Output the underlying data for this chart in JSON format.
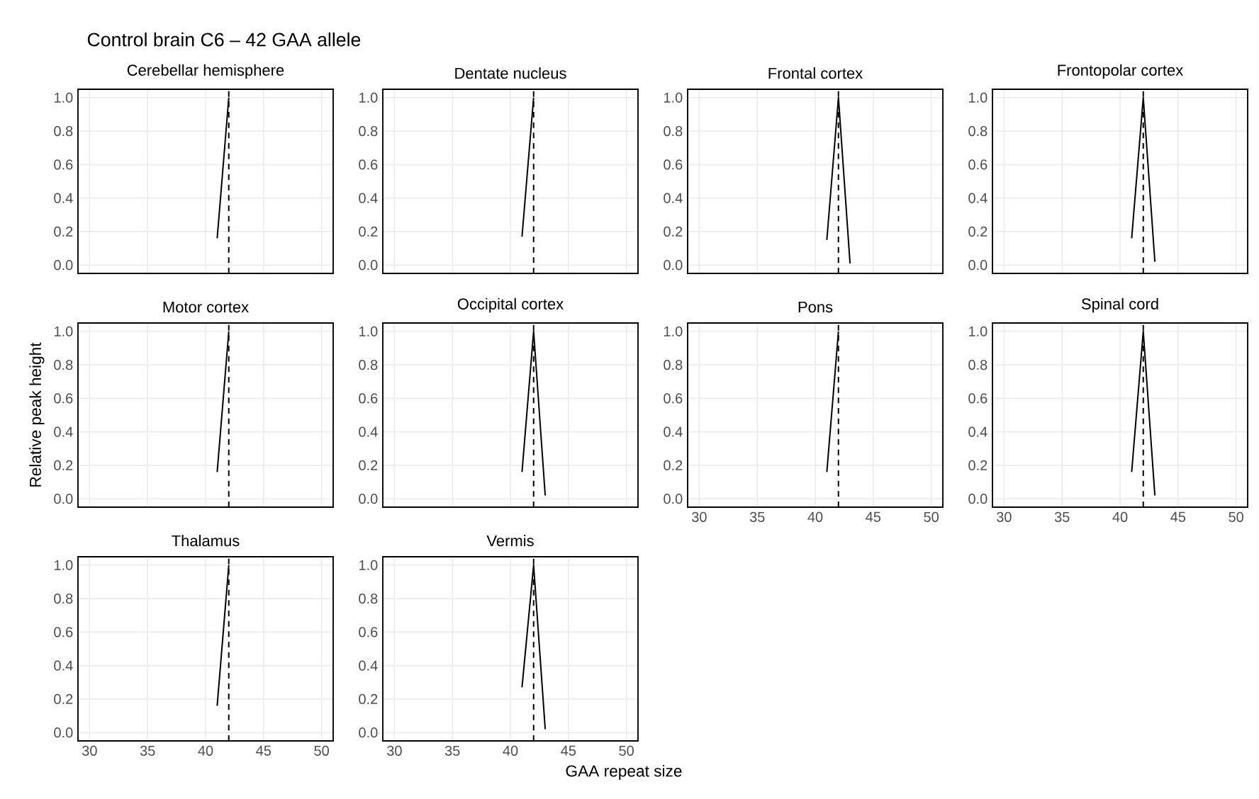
{
  "chart_data": [
    {
      "type": "line",
      "title": "Cerebellar hemisphere",
      "annotations": [
        "Control brain C6 – 42 GAA allele"
      ],
      "x": [
        41,
        42
      ],
      "series": [
        {
          "color": "#000000",
          "values": [
            0.16,
            1.0
          ]
        }
      ],
      "ref_lines": [
        {
          "axis": "x",
          "value": 42,
          "color": "#000000",
          "line_style": "dashed"
        }
      ],
      "xlim": [
        29,
        51
      ],
      "ylim": [
        -0.05,
        1.05
      ],
      "xticks": [
        30,
        35,
        40,
        45,
        50
      ],
      "yticks": [
        {
          "value": 0,
          "label": "0.0"
        },
        {
          "value": 0.2,
          "label": "0.2"
        },
        {
          "value": 0.4,
          "label": "0.4"
        },
        {
          "value": 0.6,
          "label": "0.6"
        },
        {
          "value": 0.8,
          "label": "0.8"
        },
        {
          "value": 1,
          "label": "1.0"
        }
      ],
      "grid": true,
      "tick_labels": "y"
    },
    {
      "type": "line",
      "title": "Dentate nucleus",
      "x": [
        41,
        42
      ],
      "series": [
        {
          "color": "#000000",
          "values": [
            0.17,
            1.0
          ]
        }
      ],
      "ref_lines": [
        {
          "axis": "x",
          "value": 42,
          "color": "#000000",
          "line_style": "dashed"
        }
      ],
      "xlim": [
        29,
        51
      ],
      "ylim": [
        -0.05,
        1.05
      ],
      "xticks": [
        30,
        35,
        40,
        45,
        50
      ],
      "yticks": [
        {
          "value": 0,
          "label": "0.0"
        },
        {
          "value": 0.2,
          "label": "0.2"
        },
        {
          "value": 0.4,
          "label": "0.4"
        },
        {
          "value": 0.6,
          "label": "0.6"
        },
        {
          "value": 0.8,
          "label": "0.8"
        },
        {
          "value": 1,
          "label": "1.0"
        }
      ],
      "grid": true,
      "tick_labels": "y"
    },
    {
      "type": "line",
      "title": "Frontal cortex",
      "x": [
        41,
        42,
        43
      ],
      "series": [
        {
          "color": "#000000",
          "values": [
            0.15,
            1.0,
            0.01
          ]
        }
      ],
      "ref_lines": [
        {
          "axis": "x",
          "value": 42,
          "color": "#000000",
          "line_style": "dashed"
        }
      ],
      "xlim": [
        29,
        51
      ],
      "ylim": [
        -0.05,
        1.05
      ],
      "xticks": [
        30,
        35,
        40,
        45,
        50
      ],
      "yticks": [
        {
          "value": 0,
          "label": "0.0"
        },
        {
          "value": 0.2,
          "label": "0.2"
        },
        {
          "value": 0.4,
          "label": "0.4"
        },
        {
          "value": 0.6,
          "label": "0.6"
        },
        {
          "value": 0.8,
          "label": "0.8"
        },
        {
          "value": 1,
          "label": "1.0"
        }
      ],
      "grid": true,
      "tick_labels": "y"
    },
    {
      "type": "line",
      "title": "Frontopolar cortex",
      "x": [
        41,
        42,
        43
      ],
      "series": [
        {
          "color": "#000000",
          "values": [
            0.16,
            1.0,
            0.02
          ]
        }
      ],
      "ref_lines": [
        {
          "axis": "x",
          "value": 42,
          "color": "#000000",
          "line_style": "dashed"
        }
      ],
      "xlim": [
        29,
        51
      ],
      "ylim": [
        -0.05,
        1.05
      ],
      "xticks": [
        30,
        35,
        40,
        45,
        50
      ],
      "yticks": [
        {
          "value": 0,
          "label": "0.0"
        },
        {
          "value": 0.2,
          "label": "0.2"
        },
        {
          "value": 0.4,
          "label": "0.4"
        },
        {
          "value": 0.6,
          "label": "0.6"
        },
        {
          "value": 0.8,
          "label": "0.8"
        },
        {
          "value": 1,
          "label": "1.0"
        }
      ],
      "grid": true,
      "tick_labels": "y"
    },
    {
      "type": "line",
      "title": "Motor cortex",
      "ylabel": "Relative peak height",
      "x": [
        41,
        42
      ],
      "series": [
        {
          "color": "#000000",
          "values": [
            0.16,
            1.0
          ]
        }
      ],
      "ref_lines": [
        {
          "axis": "x",
          "value": 42,
          "color": "#000000",
          "line_style": "dashed"
        }
      ],
      "xlim": [
        29,
        51
      ],
      "ylim": [
        -0.05,
        1.05
      ],
      "xticks": [
        30,
        35,
        40,
        45,
        50
      ],
      "yticks": [
        {
          "value": 0,
          "label": "0.0"
        },
        {
          "value": 0.2,
          "label": "0.2"
        },
        {
          "value": 0.4,
          "label": "0.4"
        },
        {
          "value": 0.6,
          "label": "0.6"
        },
        {
          "value": 0.8,
          "label": "0.8"
        },
        {
          "value": 1,
          "label": "1.0"
        }
      ],
      "grid": true,
      "tick_labels": "y"
    },
    {
      "type": "line",
      "title": "Occipital cortex",
      "x": [
        41,
        42,
        43
      ],
      "series": [
        {
          "color": "#000000",
          "values": [
            0.16,
            1.0,
            0.02
          ]
        }
      ],
      "ref_lines": [
        {
          "axis": "x",
          "value": 42,
          "color": "#000000",
          "line_style": "dashed"
        }
      ],
      "xlim": [
        29,
        51
      ],
      "ylim": [
        -0.05,
        1.05
      ],
      "xticks": [
        30,
        35,
        40,
        45,
        50
      ],
      "yticks": [
        {
          "value": 0,
          "label": "0.0"
        },
        {
          "value": 0.2,
          "label": "0.2"
        },
        {
          "value": 0.4,
          "label": "0.4"
        },
        {
          "value": 0.6,
          "label": "0.6"
        },
        {
          "value": 0.8,
          "label": "0.8"
        },
        {
          "value": 1,
          "label": "1.0"
        }
      ],
      "grid": true,
      "tick_labels": "y"
    },
    {
      "type": "line",
      "title": "Pons",
      "x": [
        41,
        42
      ],
      "series": [
        {
          "color": "#000000",
          "values": [
            0.16,
            1.0
          ]
        }
      ],
      "ref_lines": [
        {
          "axis": "x",
          "value": 42,
          "color": "#000000",
          "line_style": "dashed"
        }
      ],
      "xlim": [
        29,
        51
      ],
      "ylim": [
        -0.05,
        1.05
      ],
      "xticks": [
        30,
        35,
        40,
        45,
        50
      ],
      "yticks": [
        {
          "value": 0,
          "label": "0.0"
        },
        {
          "value": 0.2,
          "label": "0.2"
        },
        {
          "value": 0.4,
          "label": "0.4"
        },
        {
          "value": 0.6,
          "label": "0.6"
        },
        {
          "value": 0.8,
          "label": "0.8"
        },
        {
          "value": 1,
          "label": "1.0"
        }
      ],
      "grid": true
    },
    {
      "type": "line",
      "title": "Spinal cord",
      "x": [
        41,
        42,
        43
      ],
      "series": [
        {
          "color": "#000000",
          "values": [
            0.16,
            1.0,
            0.02
          ]
        }
      ],
      "ref_lines": [
        {
          "axis": "x",
          "value": 42,
          "color": "#000000",
          "line_style": "dashed"
        }
      ],
      "xlim": [
        29,
        51
      ],
      "ylim": [
        -0.05,
        1.05
      ],
      "xticks": [
        30,
        35,
        40,
        45,
        50
      ],
      "yticks": [
        {
          "value": 0,
          "label": "0.0"
        },
        {
          "value": 0.2,
          "label": "0.2"
        },
        {
          "value": 0.4,
          "label": "0.4"
        },
        {
          "value": 0.6,
          "label": "0.6"
        },
        {
          "value": 0.8,
          "label": "0.8"
        },
        {
          "value": 1,
          "label": "1.0"
        }
      ],
      "grid": true
    },
    {
      "type": "line",
      "title": "Thalamus",
      "x": [
        41,
        42
      ],
      "series": [
        {
          "color": "#000000",
          "values": [
            0.16,
            1.0
          ]
        }
      ],
      "ref_lines": [
        {
          "axis": "x",
          "value": 42,
          "color": "#000000",
          "line_style": "dashed"
        }
      ],
      "xlim": [
        29,
        51
      ],
      "ylim": [
        -0.05,
        1.05
      ],
      "xticks": [
        30,
        35,
        40,
        45,
        50
      ],
      "yticks": [
        {
          "value": 0,
          "label": "0.0"
        },
        {
          "value": 0.2,
          "label": "0.2"
        },
        {
          "value": 0.4,
          "label": "0.4"
        },
        {
          "value": 0.6,
          "label": "0.6"
        },
        {
          "value": 0.8,
          "label": "0.8"
        },
        {
          "value": 1,
          "label": "1.0"
        }
      ],
      "grid": true
    },
    {
      "type": "line",
      "title": "Vermis",
      "xlabel": "GAA repeat size",
      "x": [
        41,
        42,
        43
      ],
      "series": [
        {
          "color": "#000000",
          "values": [
            0.27,
            1.0,
            0.02
          ]
        }
      ],
      "ref_lines": [
        {
          "axis": "x",
          "value": 42,
          "color": "#000000",
          "line_style": "dashed"
        }
      ],
      "xlim": [
        29,
        51
      ],
      "ylim": [
        -0.05,
        1.05
      ],
      "xticks": [
        30,
        35,
        40,
        45,
        50
      ],
      "yticks": [
        {
          "value": 0,
          "label": "0.0"
        },
        {
          "value": 0.2,
          "label": "0.2"
        },
        {
          "value": 0.4,
          "label": "0.4"
        },
        {
          "value": 0.6,
          "label": "0.6"
        },
        {
          "value": 0.8,
          "label": "0.8"
        },
        {
          "value": 1,
          "label": "1.0"
        }
      ],
      "grid": true
    }
  ]
}
